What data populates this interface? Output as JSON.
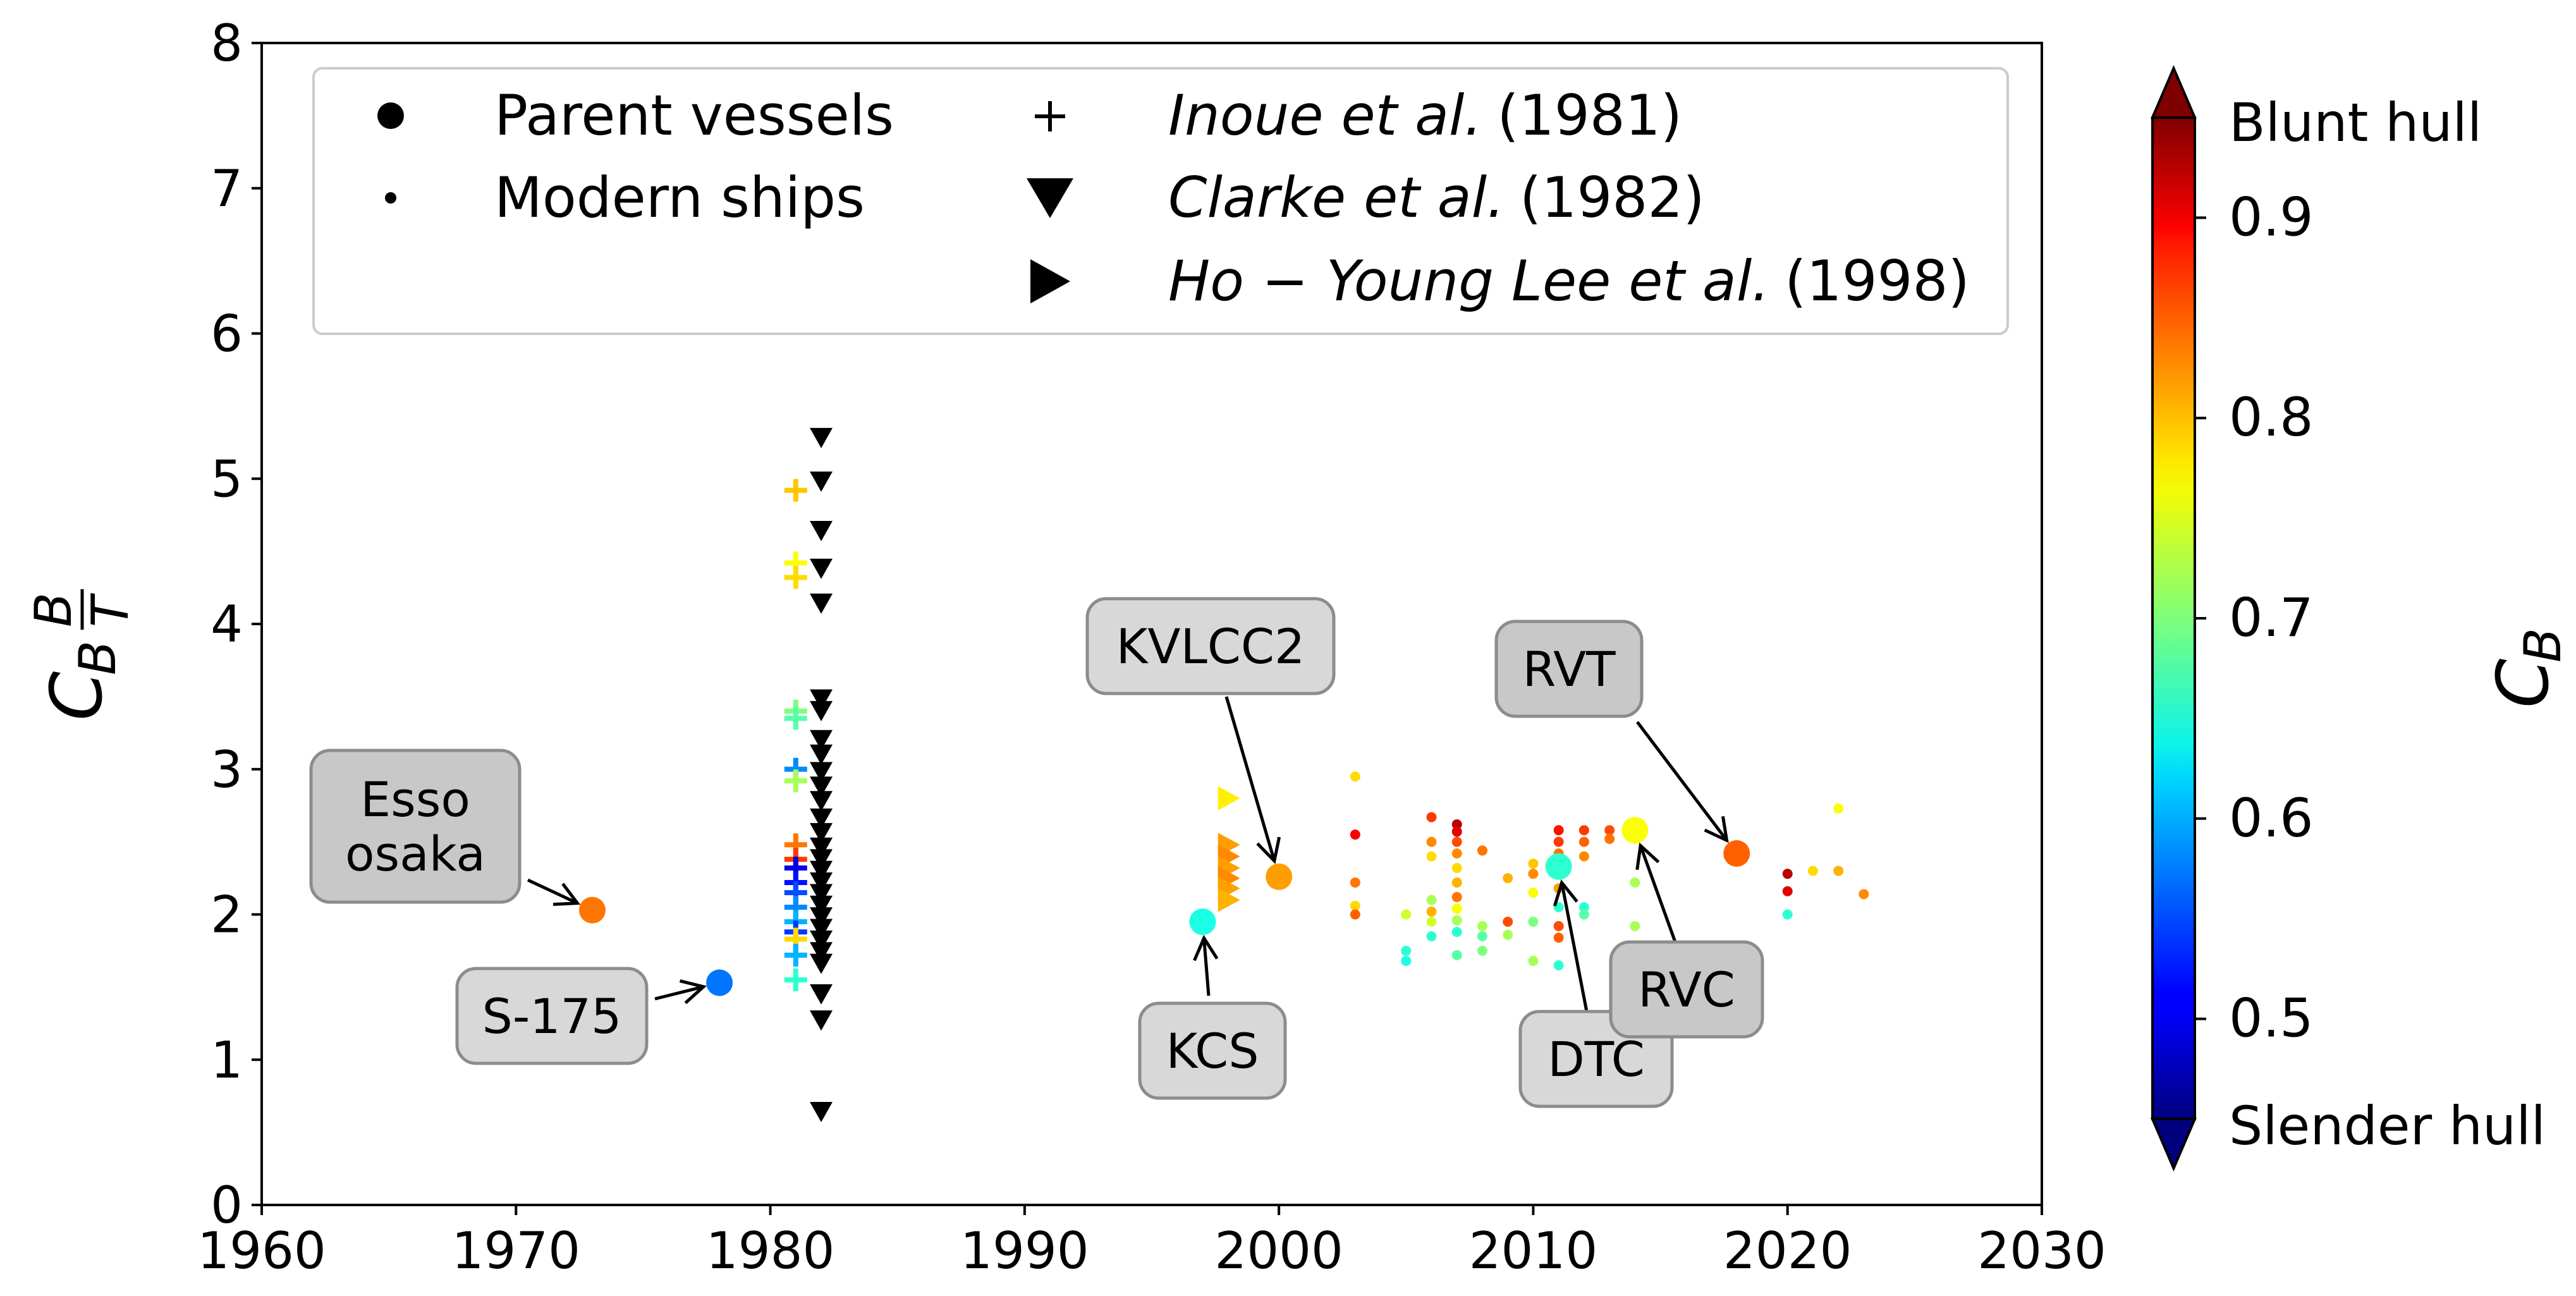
{
  "chart_data": {
    "type": "scatter",
    "xlim": [
      1960,
      2030
    ],
    "ylim": [
      0,
      8
    ],
    "x_ticks": [
      "1960",
      "1970",
      "1980",
      "1990",
      "2000",
      "2010",
      "2020",
      "2030"
    ],
    "y_ticks": [
      "0",
      "1",
      "2",
      "3",
      "4",
      "5",
      "6",
      "7",
      "8"
    ],
    "ylabel": {
      "base": "C",
      "sub": "B",
      "num": "B",
      "den": "T"
    },
    "legend": {
      "parent": "Parent vessels",
      "modern": "Modern ships",
      "inoue": {
        "name": "Inoue et al.",
        "year": "(1981)"
      },
      "clarke": {
        "name": "Clarke et al.",
        "year": "(1982)"
      },
      "lee": {
        "name": "Ho − Young Lee et al.",
        "year": "(1998)"
      }
    },
    "colorbar": {
      "label_base": "C",
      "label_sub": "B",
      "range": [
        0.45,
        0.95
      ],
      "ticks": [
        "0.5",
        "0.6",
        "0.7",
        "0.8",
        "0.9"
      ],
      "top_label": "Blunt hull",
      "bottom_label": "Slender hull"
    },
    "parent_vessels": [
      {
        "name": "Esso osaka",
        "lines": [
          "Esso",
          "osaka"
        ],
        "x": 1973,
        "y": 2.03,
        "cb": 0.83,
        "dark": true
      },
      {
        "name": "S-175",
        "lines": [
          "S-175"
        ],
        "x": 1978,
        "y": 1.53,
        "cb": 0.57,
        "dark": false
      },
      {
        "name": "KCS",
        "lines": [
          "KCS"
        ],
        "x": 1997,
        "y": 1.95,
        "cb": 0.65,
        "dark": false
      },
      {
        "name": "KVLCC2",
        "lines": [
          "KVLCC2"
        ],
        "x": 2000,
        "y": 2.26,
        "cb": 0.81,
        "dark": false
      },
      {
        "name": "DTC",
        "lines": [
          "DTC"
        ],
        "x": 2011,
        "y": 2.33,
        "cb": 0.66,
        "dark": false
      },
      {
        "name": "RVC",
        "lines": [
          "RVC"
        ],
        "x": 2014,
        "y": 2.58,
        "cb": 0.76,
        "dark": true
      },
      {
        "name": "RVT",
        "lines": [
          "RVT"
        ],
        "x": 2018,
        "y": 2.42,
        "cb": 0.84,
        "dark": true
      }
    ],
    "inoue": [
      {
        "x": 1981,
        "y": 4.92,
        "cb": 0.79
      },
      {
        "x": 1981,
        "y": 4.42,
        "cb": 0.76
      },
      {
        "x": 1981,
        "y": 4.32,
        "cb": 0.78
      },
      {
        "x": 1981,
        "y": 3.4,
        "cb": 0.7
      },
      {
        "x": 1981,
        "y": 3.35,
        "cb": 0.68
      },
      {
        "x": 1981,
        "y": 3.0,
        "cb": 0.58
      },
      {
        "x": 1981,
        "y": 2.92,
        "cb": 0.72
      },
      {
        "x": 1981,
        "y": 2.48,
        "cb": 0.83
      },
      {
        "x": 1981,
        "y": 2.38,
        "cb": 0.86
      },
      {
        "x": 1981,
        "y": 2.32,
        "cb": 0.5
      },
      {
        "x": 1981,
        "y": 2.22,
        "cb": 0.52
      },
      {
        "x": 1981,
        "y": 2.15,
        "cb": 0.55
      },
      {
        "x": 1981,
        "y": 2.05,
        "cb": 0.58
      },
      {
        "x": 1981,
        "y": 1.95,
        "cb": 0.6
      },
      {
        "x": 1981,
        "y": 1.88,
        "cb": 0.54
      },
      {
        "x": 1981,
        "y": 1.83,
        "cb": 0.78
      },
      {
        "x": 1981,
        "y": 1.72,
        "cb": 0.6
      },
      {
        "x": 1981,
        "y": 1.55,
        "cb": 0.66
      }
    ],
    "clarke": [
      {
        "x": 1982,
        "y": 5.28
      },
      {
        "x": 1982,
        "y": 4.98
      },
      {
        "x": 1982,
        "y": 4.64
      },
      {
        "x": 1982,
        "y": 4.38
      },
      {
        "x": 1982,
        "y": 4.14
      },
      {
        "x": 1982,
        "y": 3.48
      },
      {
        "x": 1982,
        "y": 3.4
      },
      {
        "x": 1982,
        "y": 3.2
      },
      {
        "x": 1982,
        "y": 3.1
      },
      {
        "x": 1982,
        "y": 2.98
      },
      {
        "x": 1982,
        "y": 2.88
      },
      {
        "x": 1982,
        "y": 2.78
      },
      {
        "x": 1982,
        "y": 2.66
      },
      {
        "x": 1982,
        "y": 2.56
      },
      {
        "x": 1982,
        "y": 2.46
      },
      {
        "x": 1982,
        "y": 2.38
      },
      {
        "x": 1982,
        "y": 2.3
      },
      {
        "x": 1982,
        "y": 2.22
      },
      {
        "x": 1982,
        "y": 2.14
      },
      {
        "x": 1982,
        "y": 2.06
      },
      {
        "x": 1982,
        "y": 1.98
      },
      {
        "x": 1982,
        "y": 1.9
      },
      {
        "x": 1982,
        "y": 1.82
      },
      {
        "x": 1982,
        "y": 1.74
      },
      {
        "x": 1982,
        "y": 1.66
      },
      {
        "x": 1982,
        "y": 1.45
      },
      {
        "x": 1982,
        "y": 1.27
      },
      {
        "x": 1982,
        "y": 0.64
      }
    ],
    "lee": [
      {
        "x": 1998,
        "y": 2.8,
        "cb": 0.77
      },
      {
        "x": 1998,
        "y": 2.48,
        "cb": 0.81
      },
      {
        "x": 1998,
        "y": 2.4,
        "cb": 0.82
      },
      {
        "x": 1998,
        "y": 2.32,
        "cb": 0.81
      },
      {
        "x": 1998,
        "y": 2.25,
        "cb": 0.82
      },
      {
        "x": 1998,
        "y": 2.18,
        "cb": 0.81
      },
      {
        "x": 1998,
        "y": 2.1,
        "cb": 0.8
      }
    ],
    "modern": [
      {
        "x": 2003,
        "y": 2.95,
        "cb": 0.78
      },
      {
        "x": 2003,
        "y": 2.55,
        "cb": 0.89
      },
      {
        "x": 2003,
        "y": 2.22,
        "cb": 0.83
      },
      {
        "x": 2003,
        "y": 2.06,
        "cb": 0.78
      },
      {
        "x": 2003,
        "y": 2.0,
        "cb": 0.84
      },
      {
        "x": 2005,
        "y": 2.0,
        "cb": 0.74
      },
      {
        "x": 2005,
        "y": 1.75,
        "cb": 0.66
      },
      {
        "x": 2005,
        "y": 1.68,
        "cb": 0.65
      },
      {
        "x": 2006,
        "y": 2.67,
        "cb": 0.86
      },
      {
        "x": 2006,
        "y": 2.5,
        "cb": 0.82
      },
      {
        "x": 2006,
        "y": 2.4,
        "cb": 0.78
      },
      {
        "x": 2006,
        "y": 2.1,
        "cb": 0.72
      },
      {
        "x": 2006,
        "y": 2.02,
        "cb": 0.8
      },
      {
        "x": 2006,
        "y": 1.95,
        "cb": 0.74
      },
      {
        "x": 2006,
        "y": 1.85,
        "cb": 0.66
      },
      {
        "x": 2007,
        "y": 2.62,
        "cb": 0.92
      },
      {
        "x": 2007,
        "y": 2.57,
        "cb": 0.9
      },
      {
        "x": 2007,
        "y": 2.5,
        "cb": 0.85
      },
      {
        "x": 2007,
        "y": 2.42,
        "cb": 0.82
      },
      {
        "x": 2007,
        "y": 2.32,
        "cb": 0.78
      },
      {
        "x": 2007,
        "y": 2.22,
        "cb": 0.8
      },
      {
        "x": 2007,
        "y": 2.12,
        "cb": 0.83
      },
      {
        "x": 2007,
        "y": 2.04,
        "cb": 0.76
      },
      {
        "x": 2007,
        "y": 1.96,
        "cb": 0.72
      },
      {
        "x": 2007,
        "y": 1.88,
        "cb": 0.66
      },
      {
        "x": 2007,
        "y": 1.72,
        "cb": 0.68
      },
      {
        "x": 2008,
        "y": 2.44,
        "cb": 0.83
      },
      {
        "x": 2008,
        "y": 1.92,
        "cb": 0.72
      },
      {
        "x": 2008,
        "y": 1.85,
        "cb": 0.68
      },
      {
        "x": 2008,
        "y": 1.75,
        "cb": 0.7
      },
      {
        "x": 2009,
        "y": 2.25,
        "cb": 0.8
      },
      {
        "x": 2009,
        "y": 1.95,
        "cb": 0.85
      },
      {
        "x": 2009,
        "y": 1.86,
        "cb": 0.72
      },
      {
        "x": 2010,
        "y": 2.35,
        "cb": 0.79
      },
      {
        "x": 2010,
        "y": 2.28,
        "cb": 0.82
      },
      {
        "x": 2010,
        "y": 2.15,
        "cb": 0.76
      },
      {
        "x": 2010,
        "y": 1.95,
        "cb": 0.7
      },
      {
        "x": 2010,
        "y": 1.68,
        "cb": 0.72
      },
      {
        "x": 2011,
        "y": 2.58,
        "cb": 0.88
      },
      {
        "x": 2011,
        "y": 2.5,
        "cb": 0.86
      },
      {
        "x": 2011,
        "y": 2.42,
        "cb": 0.83
      },
      {
        "x": 2011,
        "y": 2.18,
        "cb": 0.81
      },
      {
        "x": 2011,
        "y": 2.05,
        "cb": 0.66
      },
      {
        "x": 2011,
        "y": 1.92,
        "cb": 0.85
      },
      {
        "x": 2011,
        "y": 1.84,
        "cb": 0.84
      },
      {
        "x": 2011,
        "y": 1.65,
        "cb": 0.66
      },
      {
        "x": 2012,
        "y": 2.58,
        "cb": 0.86
      },
      {
        "x": 2012,
        "y": 2.5,
        "cb": 0.84
      },
      {
        "x": 2012,
        "y": 2.4,
        "cb": 0.82
      },
      {
        "x": 2012,
        "y": 2.05,
        "cb": 0.66
      },
      {
        "x": 2012,
        "y": 2.0,
        "cb": 0.68
      },
      {
        "x": 2013,
        "y": 2.58,
        "cb": 0.85
      },
      {
        "x": 2013,
        "y": 2.52,
        "cb": 0.83
      },
      {
        "x": 2014,
        "y": 2.22,
        "cb": 0.72
      },
      {
        "x": 2014,
        "y": 1.92,
        "cb": 0.72
      },
      {
        "x": 2020,
        "y": 2.28,
        "cb": 0.92
      },
      {
        "x": 2020,
        "y": 2.16,
        "cb": 0.9
      },
      {
        "x": 2020,
        "y": 2.0,
        "cb": 0.66
      },
      {
        "x": 2021,
        "y": 2.3,
        "cb": 0.78
      },
      {
        "x": 2022,
        "y": 2.73,
        "cb": 0.76
      },
      {
        "x": 2022,
        "y": 2.3,
        "cb": 0.8
      },
      {
        "x": 2023,
        "y": 2.14,
        "cb": 0.82
      }
    ]
  }
}
